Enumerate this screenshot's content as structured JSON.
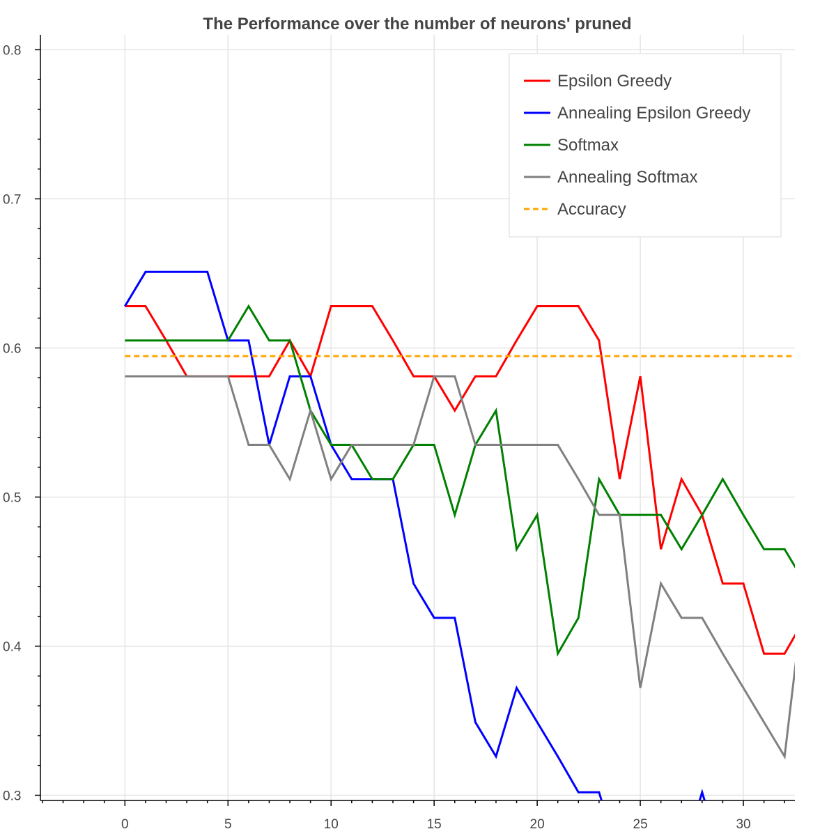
{
  "chart_data": {
    "type": "line",
    "title": "The Performance over the number of neurons' pruned",
    "xlabel": "",
    "ylabel": "",
    "xlim": [
      -4.1,
      32.5
    ],
    "ylim": [
      0.2965,
      0.81
    ],
    "x_ticks": [
      0,
      5,
      10,
      15,
      20,
      25,
      30
    ],
    "y_ticks": [
      0.3,
      0.4,
      0.5,
      0.6,
      0.7,
      0.8
    ],
    "y_tick_labels": [
      "0.3",
      "0.4",
      "0.5",
      "0.6",
      "0.7",
      "0.8"
    ],
    "grid": true,
    "legend_position": "top-right",
    "series": [
      {
        "name": "Epsilon Greedy",
        "color": "#ff0000",
        "dash": "solid",
        "x": [
          0,
          1,
          2,
          3,
          4,
          5,
          6,
          7,
          8,
          9,
          10,
          11,
          12,
          13,
          14,
          15,
          16,
          17,
          18,
          19,
          20,
          21,
          22,
          23,
          24,
          25,
          26,
          27,
          28,
          29,
          30,
          31,
          32,
          33
        ],
        "y": [
          0.628,
          0.628,
          0.605,
          0.581,
          0.581,
          0.581,
          0.581,
          0.581,
          0.605,
          0.581,
          0.628,
          0.628,
          0.628,
          0.605,
          0.581,
          0.581,
          0.558,
          0.581,
          0.581,
          0.605,
          0.628,
          0.628,
          0.628,
          0.605,
          0.512,
          0.581,
          0.465,
          0.512,
          0.488,
          0.442,
          0.442,
          0.395,
          0.395,
          0.419
        ]
      },
      {
        "name": "Annealing Epsilon Greedy",
        "color": "#0000ff",
        "dash": "solid",
        "x": [
          0,
          1,
          2,
          3,
          4,
          5,
          6,
          7,
          8,
          9,
          10,
          11,
          12,
          13,
          14,
          15,
          16,
          17,
          18,
          19,
          20,
          21,
          22,
          23,
          24,
          25,
          26,
          27,
          28,
          29
        ],
        "y": [
          0.628,
          0.651,
          0.651,
          0.651,
          0.651,
          0.605,
          0.605,
          0.535,
          0.581,
          0.581,
          0.535,
          0.512,
          0.512,
          0.512,
          0.442,
          0.419,
          0.419,
          0.349,
          0.326,
          0.372,
          0.349,
          0.326,
          0.302,
          0.302,
          0.256,
          0.256,
          0.256,
          0.256,
          0.302,
          0.256
        ]
      },
      {
        "name": "Softmax",
        "color": "#008000",
        "dash": "solid",
        "x": [
          0,
          1,
          2,
          3,
          4,
          5,
          6,
          7,
          8,
          9,
          10,
          11,
          12,
          13,
          14,
          15,
          16,
          17,
          18,
          19,
          20,
          21,
          22,
          23,
          24,
          25,
          26,
          27,
          28,
          29,
          30,
          31,
          32,
          33
        ],
        "y": [
          0.605,
          0.605,
          0.605,
          0.605,
          0.605,
          0.605,
          0.628,
          0.605,
          0.605,
          0.558,
          0.535,
          0.535,
          0.512,
          0.512,
          0.535,
          0.535,
          0.488,
          0.535,
          0.558,
          0.465,
          0.488,
          0.395,
          0.419,
          0.512,
          0.488,
          0.488,
          0.488,
          0.465,
          0.488,
          0.512,
          0.488,
          0.465,
          0.465,
          0.442
        ]
      },
      {
        "name": "Annealing Softmax",
        "color": "#808080",
        "dash": "solid",
        "x": [
          0,
          1,
          2,
          3,
          4,
          5,
          6,
          7,
          8,
          9,
          10,
          11,
          12,
          13,
          14,
          15,
          16,
          17,
          18,
          19,
          20,
          21,
          22,
          23,
          24,
          25,
          26,
          27,
          28,
          29,
          30,
          31,
          32,
          33
        ],
        "y": [
          0.581,
          0.581,
          0.581,
          0.581,
          0.581,
          0.581,
          0.535,
          0.535,
          0.512,
          0.558,
          0.512,
          0.535,
          0.535,
          0.535,
          0.535,
          0.581,
          0.581,
          0.535,
          0.535,
          0.535,
          0.535,
          0.535,
          0.512,
          0.488,
          0.488,
          0.372,
          0.442,
          0.419,
          0.419,
          0.395,
          0.372,
          0.349,
          0.326,
          0.442
        ]
      },
      {
        "name": "Accuracy",
        "color": "#ffa500",
        "dash": "dashed",
        "x": [
          0,
          33
        ],
        "y": [
          0.5945,
          0.5945
        ]
      }
    ]
  }
}
